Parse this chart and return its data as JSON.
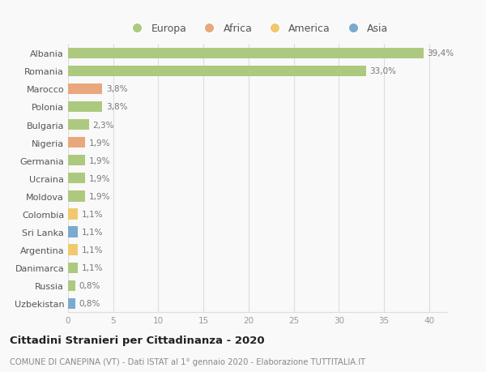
{
  "categories": [
    "Albania",
    "Romania",
    "Marocco",
    "Polonia",
    "Bulgaria",
    "Nigeria",
    "Germania",
    "Ucraina",
    "Moldova",
    "Colombia",
    "Sri Lanka",
    "Argentina",
    "Danimarca",
    "Russia",
    "Uzbekistan"
  ],
  "values": [
    39.4,
    33.0,
    3.8,
    3.8,
    2.3,
    1.9,
    1.9,
    1.9,
    1.9,
    1.1,
    1.1,
    1.1,
    1.1,
    0.8,
    0.8
  ],
  "labels": [
    "39,4%",
    "33,0%",
    "3,8%",
    "3,8%",
    "2,3%",
    "1,9%",
    "1,9%",
    "1,9%",
    "1,9%",
    "1,1%",
    "1,1%",
    "1,1%",
    "1,1%",
    "0,8%",
    "0,8%"
  ],
  "colors": [
    "#adc97f",
    "#adc97f",
    "#e9a87c",
    "#adc97f",
    "#adc97f",
    "#e9a87c",
    "#adc97f",
    "#adc97f",
    "#adc97f",
    "#f0c96e",
    "#7aabcf",
    "#f0c96e",
    "#adc97f",
    "#adc97f",
    "#7aabcf"
  ],
  "legend_labels": [
    "Europa",
    "Africa",
    "America",
    "Asia"
  ],
  "legend_colors": [
    "#adc97f",
    "#e9a87c",
    "#f0c96e",
    "#7aabcf"
  ],
  "title": "Cittadini Stranieri per Cittadinanza - 2020",
  "subtitle": "COMUNE DI CANEPINA (VT) - Dati ISTAT al 1° gennaio 2020 - Elaborazione TUTTITALIA.IT",
  "xlim": [
    0,
    42
  ],
  "xticks": [
    0,
    5,
    10,
    15,
    20,
    25,
    30,
    35,
    40
  ],
  "background_color": "#f9f9f9",
  "grid_color": "#dddddd"
}
